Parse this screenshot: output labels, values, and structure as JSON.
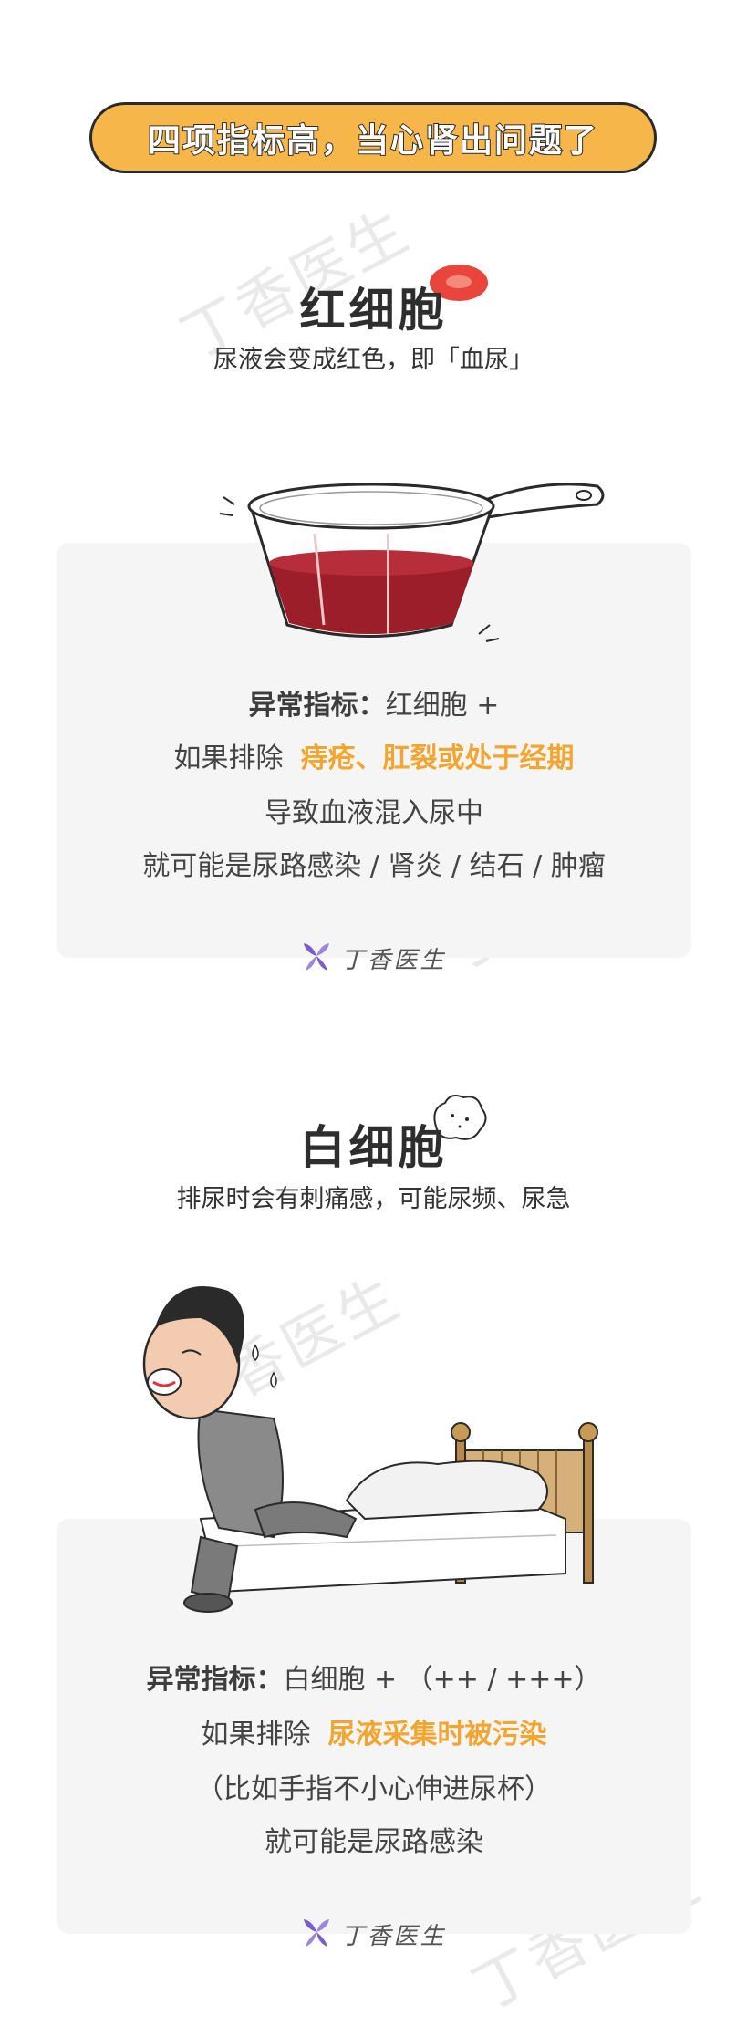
{
  "header": {
    "title": "四项指标高，当心肾出问题了"
  },
  "watermark": {
    "text": "丁香医生"
  },
  "sections": [
    {
      "title": "红细胞",
      "subtitle": "尿液会变成红色，即「血尿」",
      "indicator_label": "异常指标：",
      "indicator_value": "红细胞 +",
      "exclude_prefix": "如果排除",
      "exclude_highlight": "痔疮、肛裂或处于经期",
      "line3": "导致血液混入尿中",
      "line4": "就可能是尿路感染 / 肾炎 / 结石 / 肿瘤",
      "illustration": "cup-of-red-urine"
    },
    {
      "title": "白细胞",
      "subtitle": "排尿时会有刺痛感，可能尿频、尿急",
      "indicator_label": "异常指标：",
      "indicator_value": "白细胞 + （++ / +++）",
      "exclude_prefix": "如果排除",
      "exclude_highlight": "尿液采集时被污染",
      "line3": "（比如手指不小心伸进尿杯）",
      "line4": "就可能是尿路感染",
      "illustration": "man-in-pain-by-bed"
    }
  ],
  "brand": {
    "name": "丁香医生",
    "icon": "clove-flower-icon"
  },
  "colors": {
    "accent": "#f6b64a",
    "highlight": "#f2a530",
    "card": "#f5f5f5",
    "brand_purple": "#7b5cc9"
  }
}
